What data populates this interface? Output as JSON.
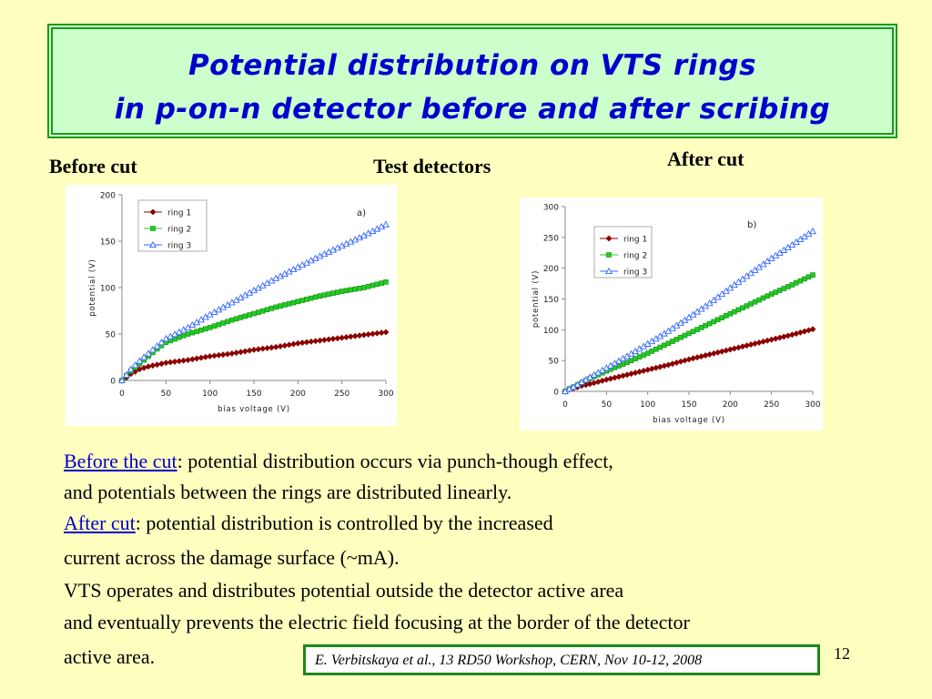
{
  "title": {
    "line1": "Potential distribution on VTS rings",
    "line2": "in p-on-n detector before and after scribing"
  },
  "labels": {
    "before_cut": "Before cut",
    "test_detectors": "Test detectors",
    "after_cut": "After cut"
  },
  "body": {
    "before_link": "Before the cut",
    "before_text": ": potential distribution occurs via punch-though effect,",
    "before_text2": " and potentials between the rings are distributed linearly.",
    "after_link": "After cut",
    "after_text": ": potential distribution is controlled by the increased",
    "after_text2": "current across the damage surface (~mA).",
    "line5": "VTS operates and distributes potential outside the detector active area",
    "line6": "and eventually prevents the electric field focusing at the border of the detector",
    "line7": "active area."
  },
  "citation": "E. Verbitskaya et al., 13 RD50 Workshop, CERN, Nov 10-12, 2008",
  "page_number": "12",
  "chart_data": [
    {
      "type": "line",
      "annotation": "a)",
      "xlabel": "bias voltage (V)",
      "ylabel": "potential (V)",
      "xlim": [
        0,
        300
      ],
      "ylim": [
        0,
        200
      ],
      "xticks": [
        0,
        50,
        100,
        150,
        200,
        250,
        300
      ],
      "yticks": [
        0,
        50,
        100,
        150,
        200
      ],
      "legend_position": "top-left",
      "x": [
        5,
        10,
        20,
        30,
        40,
        50,
        75,
        100,
        125,
        150,
        175,
        200,
        225,
        250,
        275,
        300
      ],
      "series": [
        {
          "name": "ring 1",
          "color": "#8b0000",
          "marker": "diamond",
          "values": [
            3,
            7,
            12,
            15,
            17,
            19,
            22,
            26,
            29,
            33,
            36,
            40,
            43,
            46,
            49,
            52
          ]
        },
        {
          "name": "ring 2",
          "color": "#22cc22",
          "marker": "square",
          "values": [
            5,
            10,
            18,
            26,
            34,
            41,
            50,
            57,
            65,
            72,
            79,
            85,
            91,
            96,
            100,
            106
          ]
        },
        {
          "name": "ring 3",
          "color": "#3366ff",
          "marker": "triangle",
          "values": [
            6,
            12,
            21,
            29,
            37,
            45,
            57,
            71,
            84,
            97,
            110,
            122,
            134,
            145,
            156,
            168
          ]
        }
      ]
    },
    {
      "type": "line",
      "annotation": "b)",
      "xlabel": "bias voltage (V)",
      "ylabel": "potential (V)",
      "xlim": [
        0,
        300
      ],
      "ylim": [
        0,
        300
      ],
      "xticks": [
        0,
        50,
        100,
        150,
        200,
        250,
        300
      ],
      "yticks": [
        0,
        50,
        100,
        150,
        200,
        250,
        300
      ],
      "legend_position": "top-left",
      "x": [
        5,
        10,
        20,
        30,
        50,
        75,
        100,
        125,
        150,
        175,
        200,
        225,
        250,
        275,
        300
      ],
      "series": [
        {
          "name": "ring 1",
          "color": "#8b0000",
          "marker": "diamond",
          "values": [
            3,
            5,
            9,
            12,
            19,
            27,
            35,
            43,
            52,
            60,
            68,
            76,
            84,
            92,
            101
          ]
        },
        {
          "name": "ring 2",
          "color": "#22cc22",
          "marker": "square",
          "values": [
            4,
            7,
            14,
            21,
            33,
            47,
            62,
            78,
            94,
            110,
            126,
            142,
            158,
            173,
            189
          ]
        },
        {
          "name": "ring 3",
          "color": "#3366ff",
          "marker": "triangle",
          "values": [
            4,
            7,
            15,
            23,
            38,
            57,
            77,
            98,
            120,
            143,
            168,
            192,
            216,
            238,
            260
          ]
        }
      ]
    }
  ]
}
